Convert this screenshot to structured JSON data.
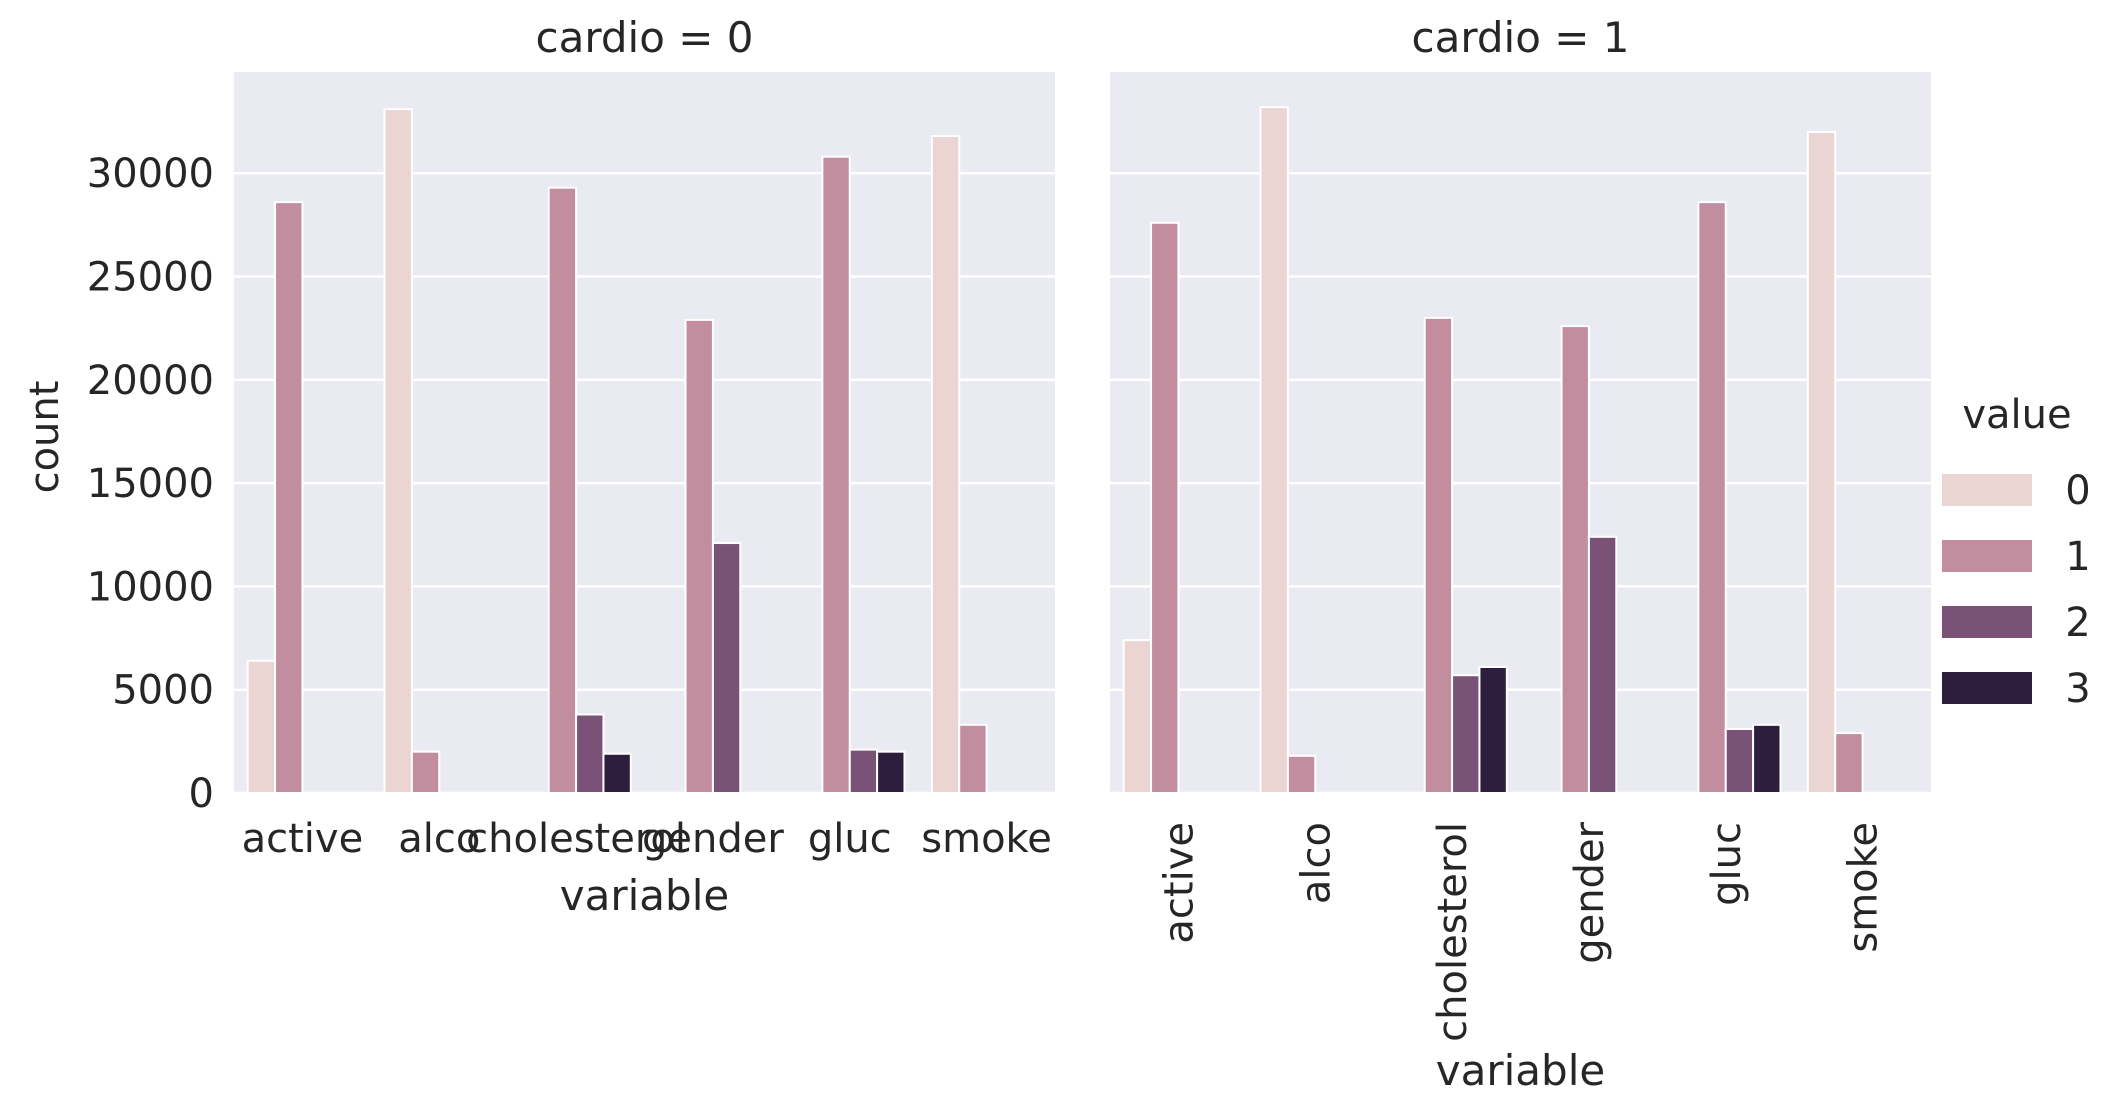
{
  "chart_data": {
    "type": "bar",
    "ylabel": "count",
    "ylim": [
      0,
      35000
    ],
    "yticks": [
      0,
      5000,
      10000,
      15000,
      20000,
      25000,
      30000
    ],
    "grid": true,
    "legend": {
      "title": "value",
      "placement": "right",
      "entries": [
        "0",
        "1",
        "2",
        "3"
      ]
    },
    "colors": [
      "#ebd5d3",
      "#c18d9f",
      "#7a5278",
      "#2d1e3e"
    ],
    "background": "#eaeaf2",
    "categories": [
      "active",
      "alco",
      "cholesterol",
      "gender",
      "gluc",
      "smoke"
    ],
    "panels": [
      {
        "title": "cardio = 0",
        "xlabel": "variable",
        "series": [
          {
            "name": "0",
            "values": [
              6400,
              33100,
              null,
              null,
              null,
              31800
            ]
          },
          {
            "name": "1",
            "values": [
              28600,
              2000,
              29300,
              22900,
              30800,
              3300
            ]
          },
          {
            "name": "2",
            "values": [
              null,
              null,
              3800,
              12100,
              2100,
              null
            ]
          },
          {
            "name": "3",
            "values": [
              null,
              null,
              1900,
              null,
              2000,
              null
            ]
          }
        ]
      },
      {
        "title": "cardio = 1",
        "xlabel": "variable",
        "series": [
          {
            "name": "0",
            "values": [
              7400,
              33200,
              null,
              null,
              null,
              32000
            ]
          },
          {
            "name": "1",
            "values": [
              27600,
              1800,
              23000,
              22600,
              28600,
              2900
            ]
          },
          {
            "name": "2",
            "values": [
              null,
              null,
              5700,
              12400,
              3100,
              null
            ]
          },
          {
            "name": "3",
            "values": [
              null,
              null,
              6100,
              null,
              3300,
              null
            ]
          }
        ]
      }
    ]
  }
}
